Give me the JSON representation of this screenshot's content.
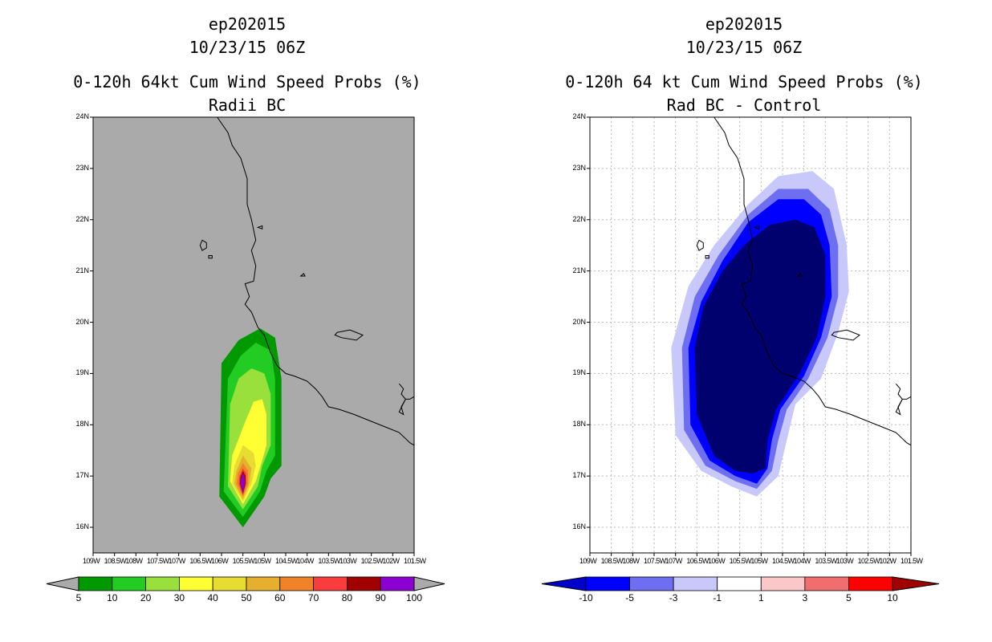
{
  "chart_data": [
    {
      "type": "heatmap",
      "storm_id": "ep202015",
      "date": "10/23/15 06Z",
      "title": "0-120h 64kt Cum Wind Speed Probs (%)",
      "subtitle": "Radii BC",
      "lat_ticks": [
        "24N",
        "23N",
        "22N",
        "21N",
        "20N",
        "19N",
        "18N",
        "17N",
        "16N"
      ],
      "lon_ticks": [
        "109W",
        "108.5W",
        "108W",
        "107.5W",
        "107W",
        "106.5W",
        "106W",
        "105.5W",
        "105W",
        "104.5W",
        "104W",
        "103.5W",
        "103W",
        "102.5W",
        "102W",
        "101.5W"
      ],
      "xlim": [
        -109,
        -101.5
      ],
      "ylim": [
        15.5,
        24
      ],
      "colorbar": {
        "labels": [
          "5",
          "10",
          "20",
          "30",
          "40",
          "50",
          "60",
          "70",
          "80",
          "90",
          "100"
        ],
        "colors": [
          "#009900",
          "#22cc22",
          "#99e03c",
          "#ffff33",
          "#e6dc32",
          "#e6af2d",
          "#f08228",
          "#fa3c3c",
          "#a00000",
          "#8c00d2"
        ]
      },
      "contour_levels": [
        {
          "level": 5,
          "color": "#009900",
          "coords": [
            [
              -105.5,
              16.0
            ],
            [
              -105.0,
              16.6
            ],
            [
              -104.85,
              16.95
            ],
            [
              -104.6,
              17.2
            ],
            [
              -104.6,
              18.9
            ],
            [
              -104.75,
              19.7
            ],
            [
              -105.1,
              19.88
            ],
            [
              -105.6,
              19.65
            ],
            [
              -106.0,
              19.2
            ],
            [
              -106.05,
              16.6
            ]
          ]
        },
        {
          "level": 10,
          "color": "#22cc22",
          "coords": [
            [
              -105.5,
              16.2
            ],
            [
              -105.1,
              16.7
            ],
            [
              -104.95,
              17.1
            ],
            [
              -104.75,
              17.4
            ],
            [
              -104.75,
              18.9
            ],
            [
              -104.85,
              19.45
            ],
            [
              -105.2,
              19.6
            ],
            [
              -105.55,
              19.35
            ],
            [
              -105.85,
              18.9
            ],
            [
              -105.95,
              16.7
            ]
          ]
        },
        {
          "level": 20,
          "color": "#99e03c",
          "coords": [
            [
              -105.5,
              16.35
            ],
            [
              -105.15,
              16.8
            ],
            [
              -105.05,
              17.2
            ],
            [
              -104.85,
              17.6
            ],
            [
              -104.85,
              18.6
            ],
            [
              -105.0,
              19.0
            ],
            [
              -105.3,
              19.1
            ],
            [
              -105.6,
              18.9
            ],
            [
              -105.8,
              18.4
            ],
            [
              -105.85,
              16.8
            ]
          ]
        },
        {
          "level": 30,
          "color": "#ffff33",
          "coords": [
            [
              -105.5,
              16.45
            ],
            [
              -105.2,
              16.9
            ],
            [
              -105.05,
              17.3
            ],
            [
              -104.95,
              17.6
            ],
            [
              -104.95,
              18.2
            ],
            [
              -105.05,
              18.5
            ],
            [
              -105.25,
              18.45
            ],
            [
              -105.45,
              18.05
            ],
            [
              -105.75,
              17.4
            ],
            [
              -105.8,
              16.9
            ]
          ]
        },
        {
          "level": 40,
          "color": "#e6dc32",
          "coords": [
            [
              -105.5,
              16.5
            ],
            [
              -105.3,
              16.85
            ],
            [
              -105.2,
              17.2
            ],
            [
              -105.25,
              17.45
            ],
            [
              -105.5,
              17.6
            ],
            [
              -105.7,
              17.2
            ],
            [
              -105.75,
              16.85
            ]
          ]
        },
        {
          "level": 50,
          "color": "#e6af2d",
          "coords": [
            [
              -105.5,
              16.55
            ],
            [
              -105.35,
              16.85
            ],
            [
              -105.3,
              17.15
            ],
            [
              -105.5,
              17.4
            ],
            [
              -105.65,
              17.1
            ],
            [
              -105.7,
              16.85
            ]
          ]
        },
        {
          "level": 60,
          "color": "#f08228",
          "coords": [
            [
              -105.5,
              16.6
            ],
            [
              -105.38,
              16.85
            ],
            [
              -105.38,
              17.1
            ],
            [
              -105.5,
              17.25
            ],
            [
              -105.62,
              17.05
            ],
            [
              -105.65,
              16.85
            ]
          ]
        },
        {
          "level": 70,
          "color": "#fa3c3c",
          "coords": [
            [
              -105.5,
              16.63
            ],
            [
              -105.42,
              16.85
            ],
            [
              -105.42,
              17.05
            ],
            [
              -105.5,
              17.15
            ],
            [
              -105.58,
              17.0
            ],
            [
              -105.6,
              16.85
            ]
          ]
        },
        {
          "level": 80,
          "color": "#a00000",
          "coords": [
            [
              -105.5,
              16.65
            ],
            [
              -105.44,
              16.85
            ],
            [
              -105.44,
              17.0
            ],
            [
              -105.5,
              17.1
            ],
            [
              -105.56,
              16.98
            ],
            [
              -105.57,
              16.85
            ]
          ]
        },
        {
          "level": 90,
          "color": "#8c00d2",
          "coords": [
            [
              -105.5,
              16.66
            ],
            [
              -105.46,
              16.85
            ],
            [
              -105.46,
              16.97
            ],
            [
              -105.5,
              17.06
            ],
            [
              -105.54,
              16.96
            ],
            [
              -105.55,
              16.85
            ]
          ]
        }
      ]
    },
    {
      "type": "heatmap",
      "storm_id": "ep202015",
      "date": "10/23/15 06Z",
      "title": "0-120h 64 kt Cum Wind Speed Probs (%)",
      "subtitle": "Rad BC - Control",
      "lat_ticks": [
        "24N",
        "23N",
        "22N",
        "21N",
        "20N",
        "19N",
        "18N",
        "17N",
        "16N"
      ],
      "lon_ticks": [
        "109W",
        "108.5W",
        "108W",
        "107.5W",
        "107W",
        "106.5W",
        "106W",
        "105.5W",
        "105W",
        "104.5W",
        "104W",
        "103.5W",
        "103W",
        "102.5W",
        "102W",
        "101.5W"
      ],
      "xlim": [
        -109,
        -101.5
      ],
      "ylim": [
        15.5,
        24
      ],
      "colorbar": {
        "labels": [
          "-10",
          "-5",
          "-3",
          "-1",
          "1",
          "3",
          "5",
          "10"
        ],
        "colors": [
          "#0000cd",
          "#0000ff",
          "#6e6ef0",
          "#c8c8fa",
          "#ffffff",
          "#fac8c8",
          "#f06e6e",
          "#ff0000",
          "#a00000"
        ]
      },
      "contour_levels": [
        {
          "level": -1,
          "color": "#c8c8fa",
          "coords": [
            [
              -105.1,
              16.6
            ],
            [
              -104.6,
              17.0
            ],
            [
              -104.4,
              17.7
            ],
            [
              -104.2,
              18.4
            ],
            [
              -103.6,
              18.9
            ],
            [
              -103.2,
              19.8
            ],
            [
              -102.95,
              20.6
            ],
            [
              -103.0,
              21.5
            ],
            [
              -103.3,
              22.6
            ],
            [
              -103.8,
              22.95
            ],
            [
              -104.6,
              22.85
            ],
            [
              -105.3,
              22.3
            ],
            [
              -106.1,
              21.5
            ],
            [
              -106.7,
              20.7
            ],
            [
              -107.1,
              19.5
            ],
            [
              -107.0,
              17.8
            ],
            [
              -106.4,
              17.1
            ],
            [
              -105.7,
              16.8
            ]
          ]
        },
        {
          "level": -3,
          "color": "#6e6ef0",
          "coords": [
            [
              -105.1,
              16.75
            ],
            [
              -104.75,
              17.1
            ],
            [
              -104.6,
              17.7
            ],
            [
              -104.4,
              18.3
            ],
            [
              -103.9,
              18.9
            ],
            [
              -103.45,
              19.7
            ],
            [
              -103.2,
              20.5
            ],
            [
              -103.2,
              21.5
            ],
            [
              -103.4,
              22.2
            ],
            [
              -103.9,
              22.6
            ],
            [
              -104.6,
              22.6
            ],
            [
              -105.3,
              22.1
            ],
            [
              -106.0,
              21.3
            ],
            [
              -106.55,
              20.5
            ],
            [
              -106.85,
              19.5
            ],
            [
              -106.8,
              17.9
            ],
            [
              -106.3,
              17.2
            ],
            [
              -105.6,
              16.9
            ]
          ]
        },
        {
          "level": -5,
          "color": "#0000ff",
          "coords": [
            [
              -105.1,
              16.85
            ],
            [
              -104.85,
              17.15
            ],
            [
              -104.75,
              17.7
            ],
            [
              -104.55,
              18.3
            ],
            [
              -104.0,
              18.95
            ],
            [
              -103.6,
              19.7
            ],
            [
              -103.35,
              20.5
            ],
            [
              -103.4,
              21.5
            ],
            [
              -103.6,
              22.1
            ],
            [
              -104.0,
              22.4
            ],
            [
              -104.6,
              22.4
            ],
            [
              -105.3,
              21.95
            ],
            [
              -105.9,
              21.2
            ],
            [
              -106.4,
              20.4
            ],
            [
              -106.7,
              19.5
            ],
            [
              -106.65,
              18.0
            ],
            [
              -106.2,
              17.3
            ],
            [
              -105.6,
              17.0
            ]
          ]
        },
        {
          "level": -10,
          "color": "#00006e",
          "coords": [
            [
              -105.2,
              17.05
            ],
            [
              -104.9,
              17.15
            ],
            [
              -104.85,
              17.7
            ],
            [
              -104.65,
              18.3
            ],
            [
              -104.1,
              19.0
            ],
            [
              -103.7,
              19.7
            ],
            [
              -103.5,
              20.5
            ],
            [
              -103.5,
              21.3
            ],
            [
              -103.75,
              21.85
            ],
            [
              -104.2,
              22.0
            ],
            [
              -104.8,
              21.9
            ],
            [
              -105.4,
              21.5
            ],
            [
              -105.9,
              21.0
            ],
            [
              -106.35,
              20.3
            ],
            [
              -106.55,
              19.5
            ],
            [
              -106.5,
              18.2
            ],
            [
              -106.1,
              17.4
            ],
            [
              -105.6,
              17.1
            ]
          ]
        }
      ]
    }
  ]
}
